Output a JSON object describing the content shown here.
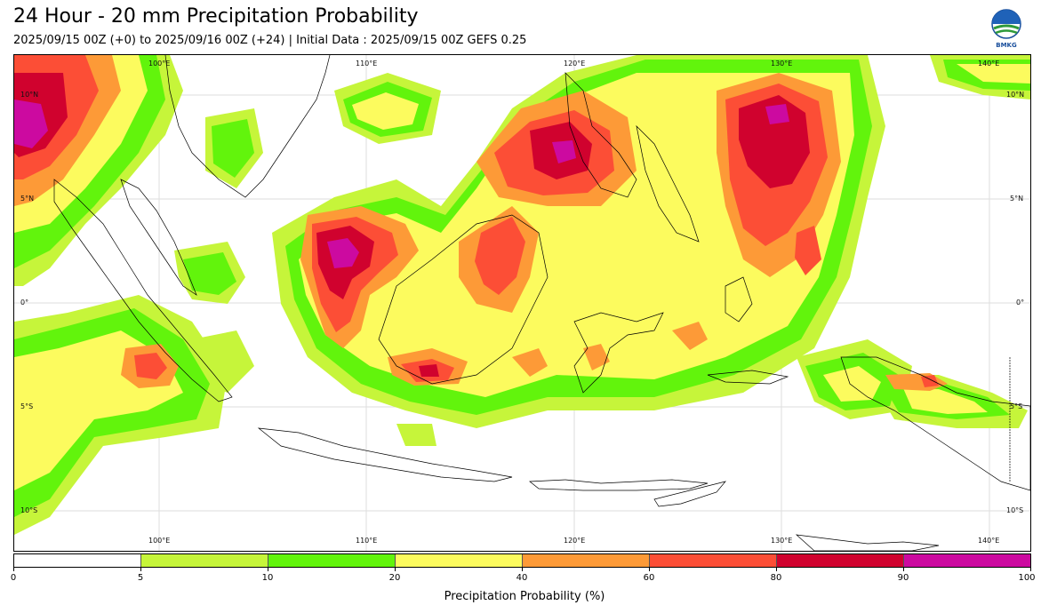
{
  "header": {
    "title": "24 Hour - 20 mm Precipitation Probability",
    "subtitle": "2025/09/15 00Z (+0) to 2025/09/16 00Z (+24) | Initial Data : 2025/09/15 00Z GEFS 0.25",
    "logo_text": "BMKG"
  },
  "map": {
    "lon_ticks_top": [
      "100°E",
      "110°E",
      "120°E",
      "130°E",
      "140°E"
    ],
    "lon_ticks_bottom": [
      "100°E",
      "110°E",
      "120°E",
      "130°E",
      "140°E"
    ],
    "lat_ticks_left": [
      "10°N",
      "5°N",
      "0°",
      "5°S",
      "10°S"
    ],
    "lat_ticks_right": [
      "10°N",
      "5°N",
      "0°",
      "5°S",
      "10°S"
    ]
  },
  "colorbar": {
    "label": "Precipitation Probability (%)",
    "ticks": [
      "0",
      "5",
      "10",
      "20",
      "40",
      "60",
      "80",
      "90",
      "100"
    ],
    "colors": [
      "#ffffff",
      "#c6f53a",
      "#62f40c",
      "#fcfb5e",
      "#fd9a37",
      "#fc4e36",
      "#d0022e",
      "#cc0aa0"
    ]
  }
}
